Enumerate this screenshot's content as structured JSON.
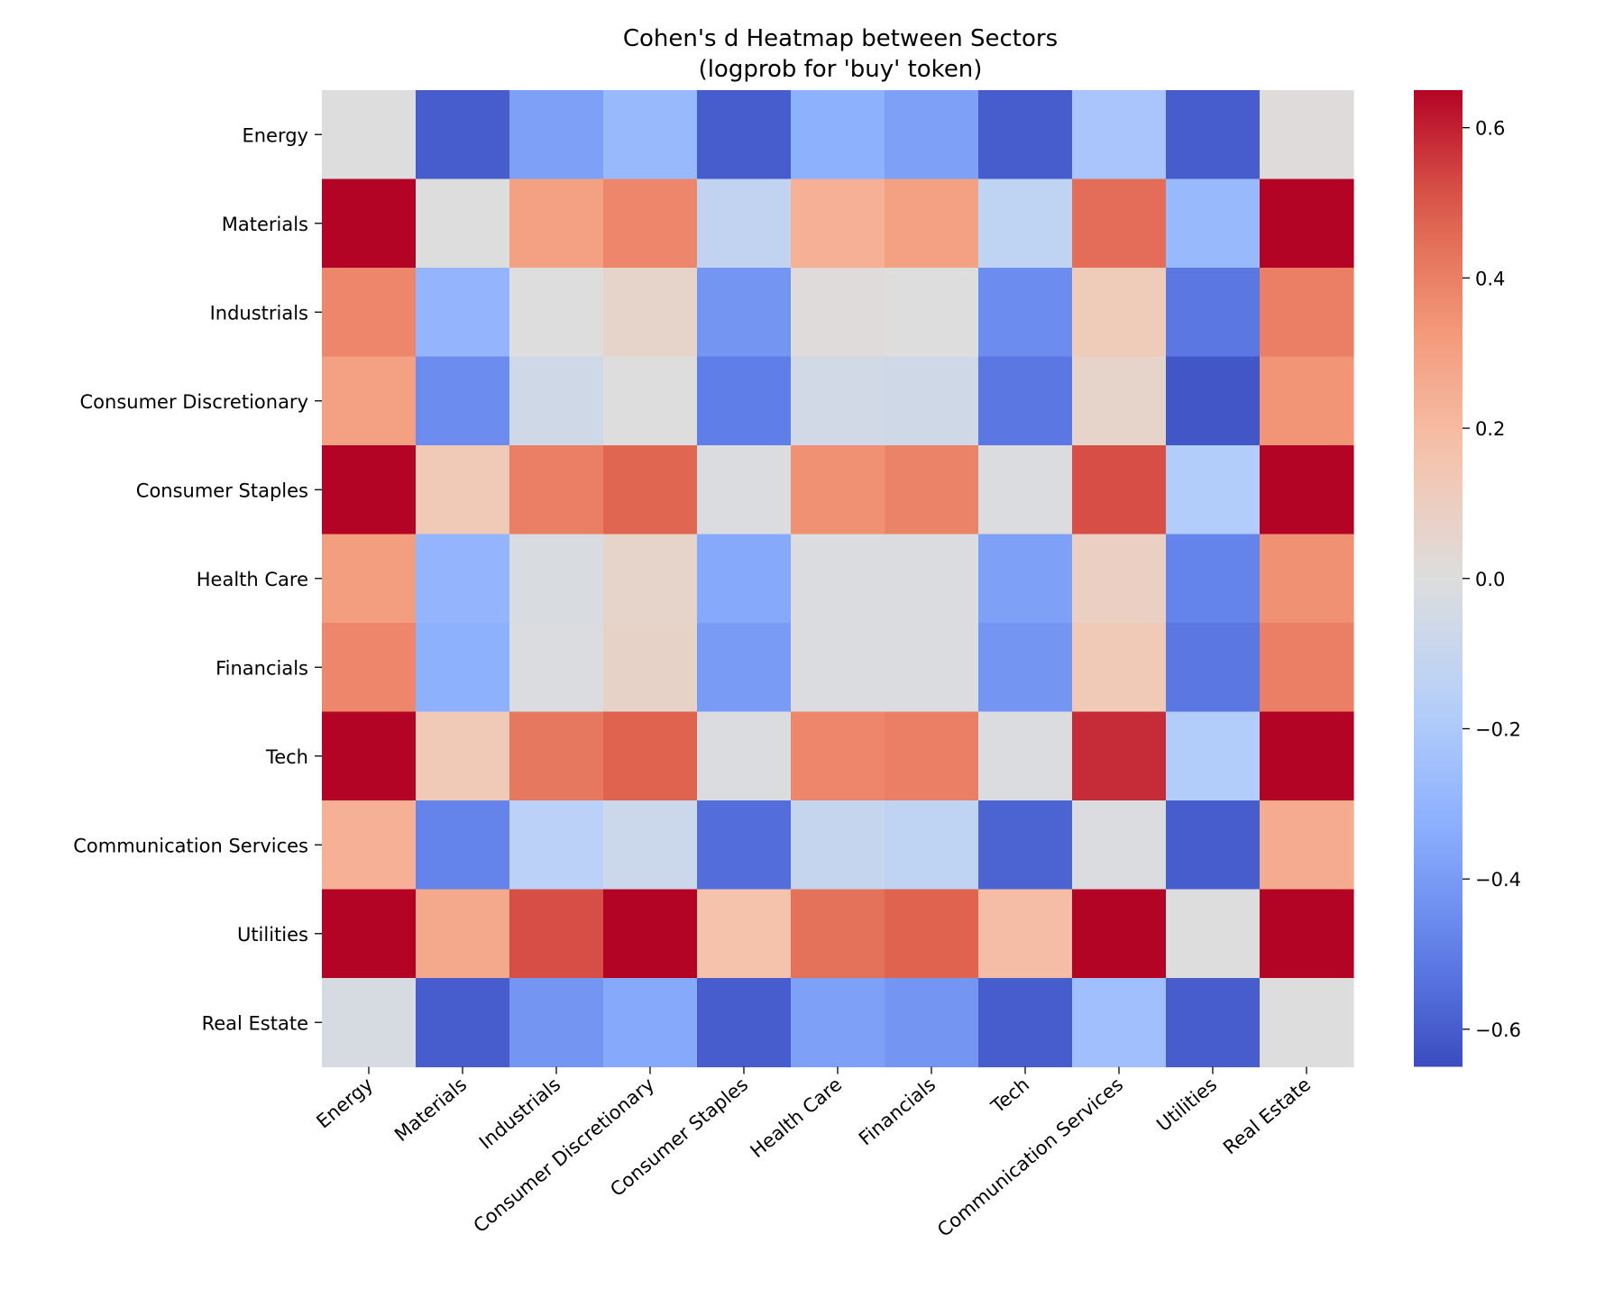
{
  "chart_data": {
    "type": "heatmap",
    "title": "Cohen's d Heatmap between Sectors",
    "subtitle": "(logprob for 'buy' token)",
    "xlabel": "",
    "ylabel": "",
    "rows": [
      "Energy",
      "Materials",
      "Industrials",
      "Consumer Discretionary",
      "Consumer Staples",
      "Health Care",
      "Financials",
      "Tech",
      "Communication Services",
      "Utilities",
      "Real Estate"
    ],
    "columns": [
      "Energy",
      "Materials",
      "Industrials",
      "Consumer Discretionary",
      "Consumer Staples",
      "Health Care",
      "Financials",
      "Tech",
      "Communication Services",
      "Utilities",
      "Real Estate"
    ],
    "values": [
      [
        0.0,
        -0.6,
        -0.38,
        -0.28,
        -0.6,
        -0.32,
        -0.38,
        -0.6,
        -0.22,
        -0.6,
        0.01
      ],
      [
        0.65,
        0.0,
        0.3,
        0.38,
        -0.12,
        0.24,
        0.3,
        -0.13,
        0.45,
        -0.28,
        0.65
      ],
      [
        0.38,
        -0.3,
        0.0,
        0.06,
        -0.42,
        0.01,
        0.0,
        -0.45,
        0.12,
        -0.52,
        0.4
      ],
      [
        0.3,
        -0.45,
        -0.06,
        0.0,
        -0.5,
        -0.05,
        -0.06,
        -0.52,
        0.06,
        -0.62,
        0.34
      ],
      [
        0.65,
        0.13,
        0.4,
        0.47,
        -0.01,
        0.35,
        0.39,
        -0.01,
        0.52,
        -0.18,
        0.65
      ],
      [
        0.31,
        -0.3,
        -0.02,
        0.06,
        -0.35,
        -0.01,
        -0.01,
        -0.38,
        0.09,
        -0.48,
        0.35
      ],
      [
        0.38,
        -0.32,
        -0.01,
        0.07,
        -0.4,
        -0.01,
        -0.01,
        -0.42,
        0.13,
        -0.52,
        0.4
      ],
      [
        0.65,
        0.13,
        0.42,
        0.48,
        -0.01,
        0.38,
        0.4,
        -0.01,
        0.58,
        -0.18,
        0.65
      ],
      [
        0.24,
        -0.48,
        -0.15,
        -0.08,
        -0.55,
        -0.1,
        -0.13,
        -0.58,
        -0.01,
        -0.6,
        0.26
      ],
      [
        0.65,
        0.27,
        0.52,
        0.65,
        0.17,
        0.44,
        0.48,
        0.19,
        0.65,
        0.0,
        0.65
      ],
      [
        -0.03,
        -0.6,
        -0.42,
        -0.35,
        -0.6,
        -0.38,
        -0.42,
        -0.6,
        -0.25,
        -0.6,
        0.0
      ]
    ],
    "colormap": "coolwarm",
    "vmin": -0.65,
    "vmax": 0.65,
    "colorbar_ticks": [
      0.6,
      0.4,
      0.2,
      0.0,
      -0.2,
      -0.4,
      -0.6
    ],
    "colorbar_tick_labels": [
      "0.6",
      "0.4",
      "0.2",
      "0.0",
      "−0.2",
      "−0.4",
      "−0.6"
    ],
    "colorbar_position": "right"
  }
}
